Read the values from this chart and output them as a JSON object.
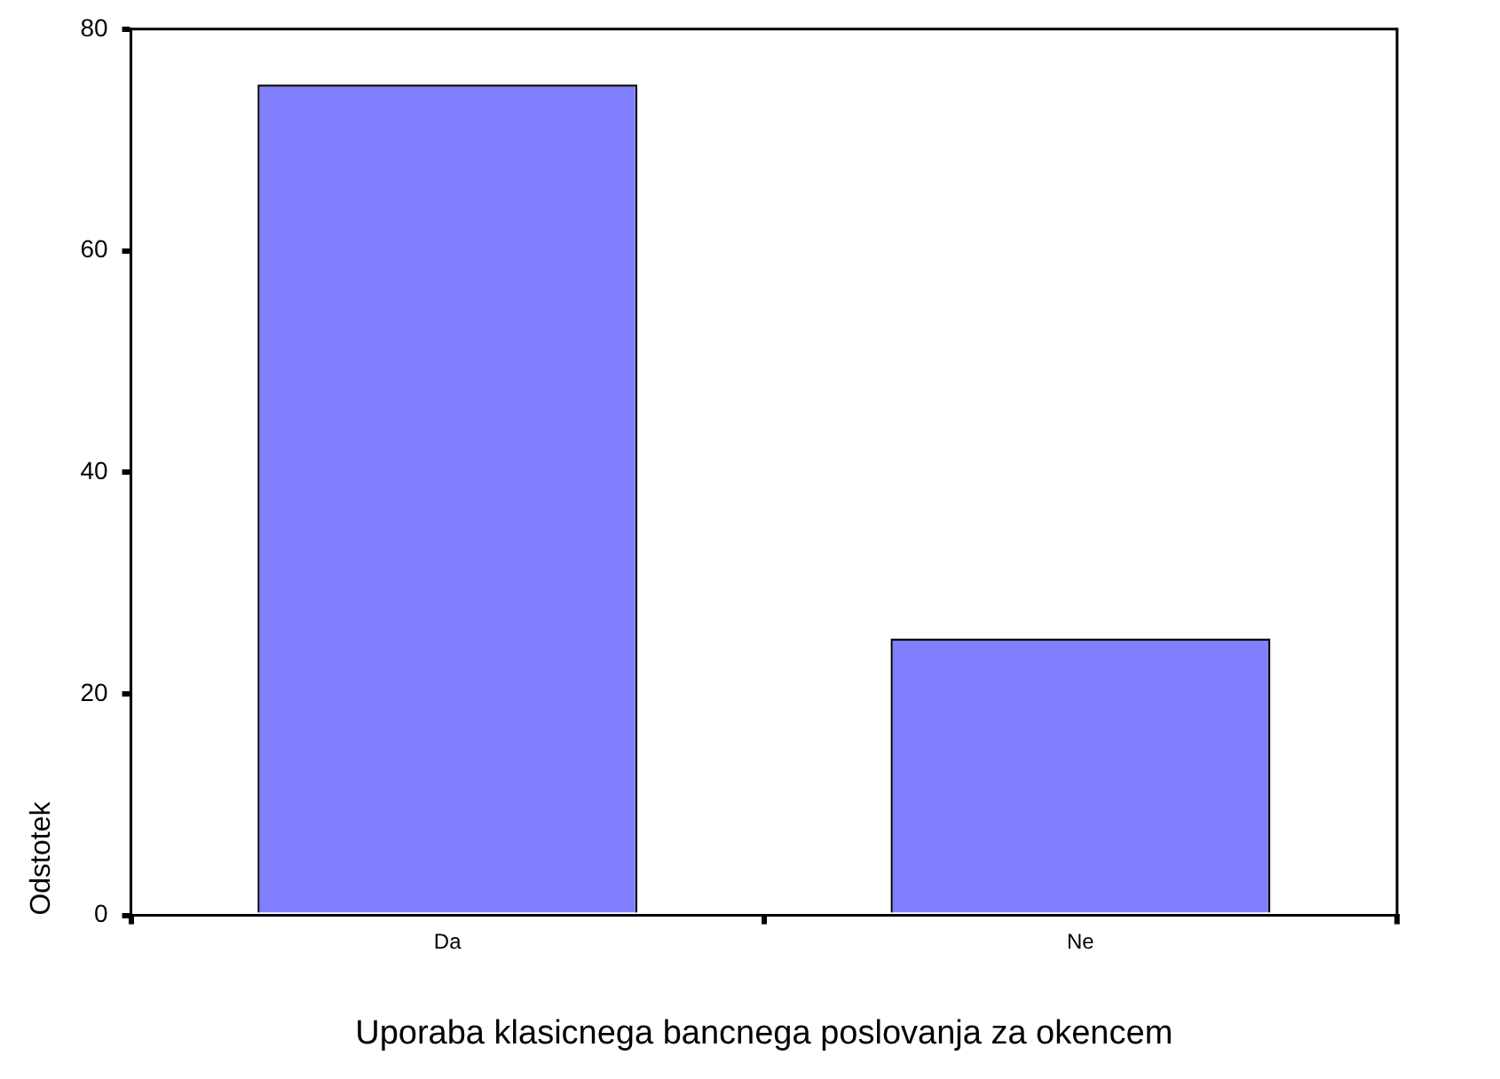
{
  "chart_data": {
    "type": "bar",
    "xlabel": "Uporaba klasicnega bancnega poslovanja za okencem",
    "ylabel": "Odstotek",
    "categories": [
      "Da",
      "Ne"
    ],
    "values": [
      75,
      25
    ],
    "color": "#8080ff",
    "ylim": [
      0,
      80
    ],
    "yticks": [
      0,
      20,
      40,
      60,
      80
    ],
    "grid": false,
    "legend": false
  }
}
